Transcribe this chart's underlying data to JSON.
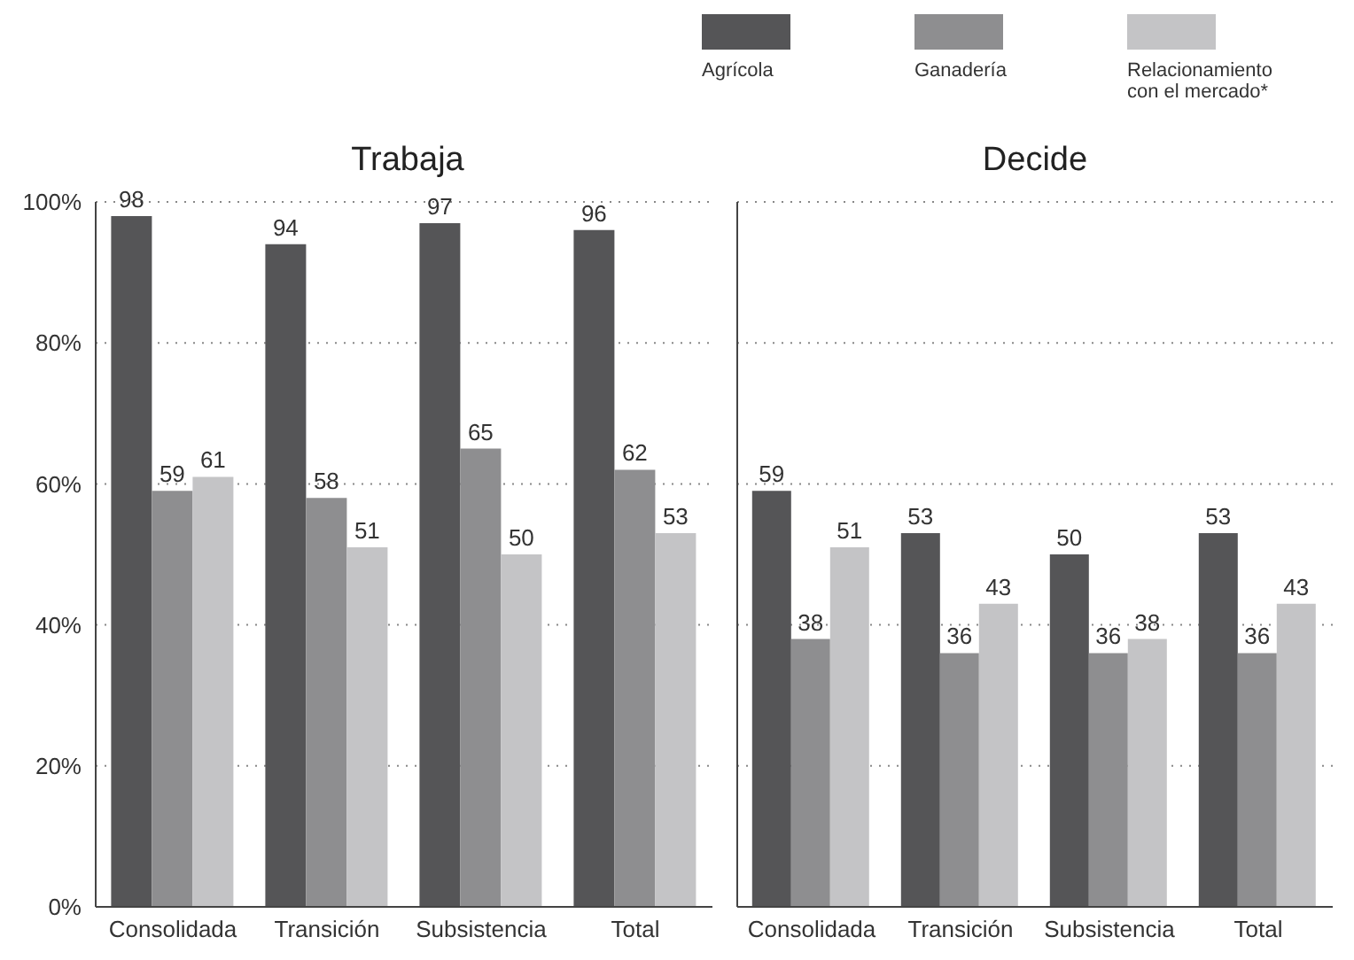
{
  "chart_data": [
    {
      "type": "bar",
      "title": "Trabaja",
      "categories": [
        "Consolidada",
        "Transición",
        "Subsistencia",
        "Total"
      ],
      "series": [
        {
          "name": "Agrícola",
          "color": "#555557",
          "values": [
            98,
            94,
            97,
            96
          ]
        },
        {
          "name": "Ganadería",
          "color": "#8e8e90",
          "values": [
            59,
            58,
            65,
            62
          ]
        },
        {
          "name": "Relacionamiento con el mercado*",
          "color": "#c4c4c6",
          "values": [
            61,
            51,
            50,
            53
          ]
        }
      ],
      "ylim": [
        0,
        100
      ],
      "yticks": [
        {
          "value": 0,
          "label": "0%"
        },
        {
          "value": 20,
          "label": "20%"
        },
        {
          "value": 40,
          "label": "40%"
        },
        {
          "value": 60,
          "label": "60%"
        },
        {
          "value": 80,
          "label": "80%"
        },
        {
          "value": 100,
          "label": "100%"
        }
      ],
      "grid": "y",
      "data_labels": true,
      "legend": "top right"
    },
    {
      "type": "bar",
      "title": "Decide",
      "categories": [
        "Consolidada",
        "Transición",
        "Subsistencia",
        "Total"
      ],
      "series": [
        {
          "color": "#555557",
          "values": [
            59,
            53,
            50,
            53
          ]
        },
        {
          "color": "#8e8e90",
          "values": [
            38,
            36,
            36,
            36
          ]
        },
        {
          "color": "#c4c4c6",
          "values": [
            51,
            43,
            38,
            43
          ]
        }
      ],
      "ylim": [
        0,
        100
      ],
      "yticks": [
        0,
        20,
        40,
        60,
        80,
        100
      ],
      "grid": "y",
      "data_labels": true,
      "tick_labels": "x"
    }
  ]
}
